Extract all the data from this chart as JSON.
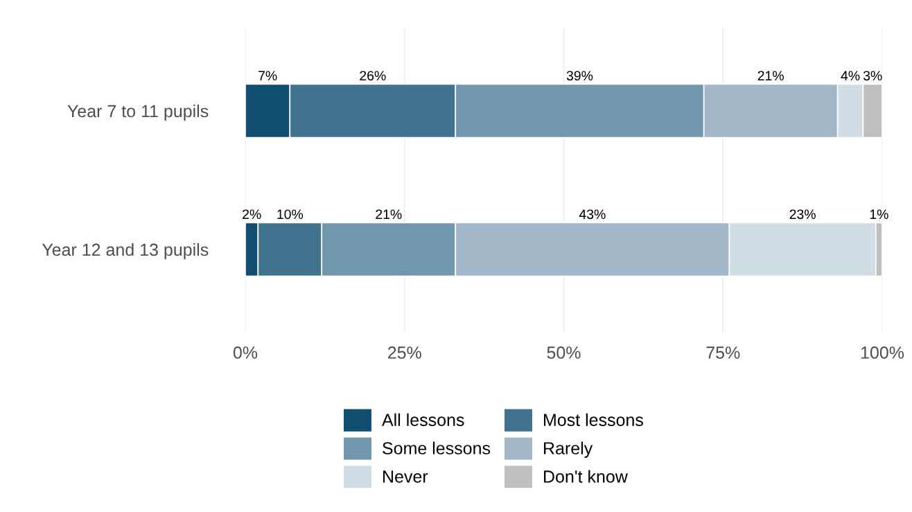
{
  "chart_data": {
    "type": "bar",
    "orientation": "horizontal",
    "stacked": true,
    "categories": [
      "Year 7 to 11 pupils",
      "Year 12 and 13 pupils"
    ],
    "series": [
      {
        "name": "All lessons",
        "color": "#124e72",
        "values": [
          7,
          2
        ],
        "value_labels": [
          "7%",
          "2%"
        ]
      },
      {
        "name": "Most lessons",
        "color": "#41738f",
        "values": [
          26,
          10
        ],
        "value_labels": [
          "26%",
          "10%"
        ]
      },
      {
        "name": "Some lessons",
        "color": "#7197ae",
        "values": [
          39,
          21
        ],
        "value_labels": [
          "39%",
          "21%"
        ]
      },
      {
        "name": "Rarely",
        "color": "#a2b8c8",
        "values": [
          21,
          43
        ],
        "value_labels": [
          "21%",
          "43%"
        ]
      },
      {
        "name": "Never",
        "color": "#d0dde5",
        "values": [
          4,
          23
        ],
        "value_labels": [
          "4%",
          "23%"
        ]
      },
      {
        "name": "Don't know",
        "color": "#bfbfbf",
        "values": [
          3,
          1
        ],
        "value_labels": [
          "3%",
          "1%"
        ]
      }
    ],
    "xlim": [
      0,
      100
    ],
    "xticks": [
      {
        "value": 0,
        "label": "0%"
      },
      {
        "value": 25,
        "label": "25%"
      },
      {
        "value": 50,
        "label": "50%"
      },
      {
        "value": 75,
        "label": "75%"
      },
      {
        "value": 100,
        "label": "100%"
      }
    ],
    "grid": "x",
    "legend": "bottom"
  }
}
